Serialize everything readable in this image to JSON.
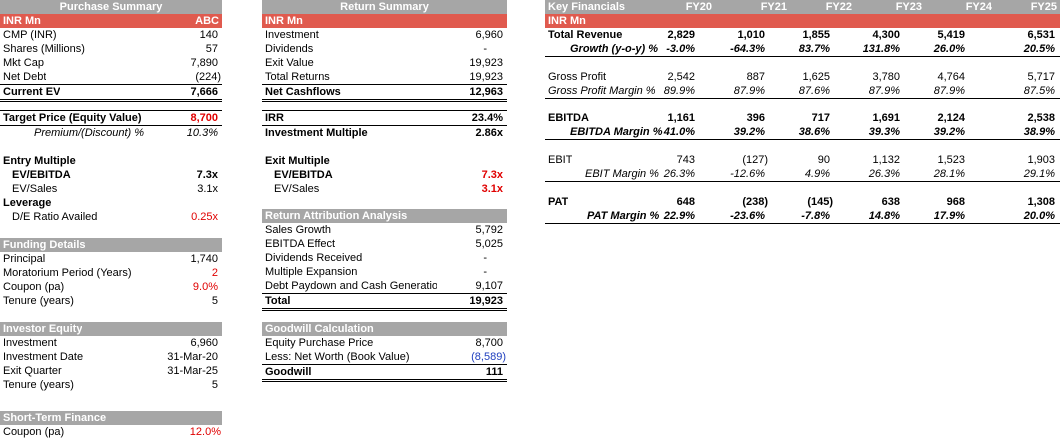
{
  "purchase": {
    "title": "Purchase Summary",
    "unit": "INR Mn",
    "company": "ABC",
    "rows": [
      {
        "label": "CMP (INR)",
        "value": "140"
      },
      {
        "label": "Shares (Millions)",
        "value": "57"
      },
      {
        "label": "Mkt Cap",
        "value": "7,890"
      },
      {
        "label": "Net Debt",
        "value": "(224)"
      },
      {
        "label": "Current EV",
        "value": "7,666"
      }
    ],
    "target_label": "Target Price (Equity Value)",
    "target_value": "8,700",
    "premium_label": "Premium/(Discount) %",
    "premium_value": "10.3%",
    "entry_label": "Entry Multiple",
    "ev_ebitda_label": "EV/EBITDA",
    "ev_ebitda_value": "7.3x",
    "ev_sales_label": "EV/Sales",
    "ev_sales_value": "3.1x",
    "leverage_label": "Leverage",
    "de_label": "D/E Ratio Availed",
    "de_value": "0.25x"
  },
  "funding": {
    "title": "Funding Details",
    "rows": [
      {
        "label": "Principal",
        "value": "1,740"
      },
      {
        "label": "Moratorium Period (Years)",
        "value": "2"
      },
      {
        "label": "Coupon (pa)",
        "value": "9.0%"
      },
      {
        "label": "Tenure (years)",
        "value": "5"
      }
    ]
  },
  "investor": {
    "title": "Investor Equity",
    "rows": [
      {
        "label": "Investment",
        "value": "6,960"
      },
      {
        "label": "Investment Date",
        "value": "31-Mar-20"
      },
      {
        "label": "Exit Quarter",
        "value": "31-Mar-25"
      },
      {
        "label": "Tenure (years)",
        "value": "5"
      }
    ]
  },
  "stf": {
    "title": "Short-Term Finance",
    "coupon_label": "Coupon (pa)",
    "coupon_value": "12.0%"
  },
  "returns": {
    "title": "Return Summary",
    "unit": "INR Mn",
    "rows": [
      {
        "label": "Investment",
        "value": "6,960"
      },
      {
        "label": "Dividends",
        "value": "-"
      },
      {
        "label": "Exit Value",
        "value": "19,923"
      },
      {
        "label": "Total Returns",
        "value": "19,923"
      },
      {
        "label": "Net Cashflows",
        "value": "12,963"
      }
    ],
    "irr_label": "IRR",
    "irr_value": "23.4%",
    "im_label": "Investment Multiple",
    "im_value": "2.86x",
    "exit_label": "Exit Multiple",
    "exit_ebitda_label": "EV/EBITDA",
    "exit_ebitda_value": "7.3x",
    "exit_sales_label": "EV/Sales",
    "exit_sales_value": "3.1x"
  },
  "attribution": {
    "title": "Return Attribution Analysis",
    "rows": [
      {
        "label": "Sales Growth",
        "value": "5,792"
      },
      {
        "label": "EBITDA Effect",
        "value": "5,025"
      },
      {
        "label": "Dividends Received",
        "value": "-"
      },
      {
        "label": "Multiple Expansion",
        "value": "-"
      },
      {
        "label": "Debt Paydown and Cash Generatio",
        "value": "9,107"
      },
      {
        "label": "Total",
        "value": "19,923"
      }
    ]
  },
  "goodwill": {
    "title": "Goodwill Calculation",
    "rows": [
      {
        "label": "Equity Purchase Price",
        "value": "8,700"
      },
      {
        "label": "Less: Net Worth (Book Value)",
        "value": "(8,589)"
      },
      {
        "label": "Goodwill",
        "value": "111"
      }
    ]
  },
  "financials": {
    "title": "Key Financials",
    "unit": "INR Mn",
    "years": [
      "FY20",
      "FY21",
      "FY22",
      "FY23",
      "FY24",
      "FY25"
    ],
    "revenue_label": "Total Revenue",
    "revenue": [
      "2,829",
      "1,010",
      "1,855",
      "4,300",
      "5,419",
      "6,531"
    ],
    "growth_label": "Growth (y-o-y) %",
    "growth": [
      "-3.0%",
      "-64.3%",
      "83.7%",
      "131.8%",
      "26.0%",
      "20.5%"
    ],
    "gp_label": "Gross Profit",
    "gp": [
      "2,542",
      "887",
      "1,625",
      "3,780",
      "4,764",
      "5,717"
    ],
    "gpm_label": "Gross Profit Margin %",
    "gpm": [
      "89.9%",
      "87.9%",
      "87.6%",
      "87.9%",
      "87.9%",
      "87.5%"
    ],
    "ebitda_label": "EBITDA",
    "ebitda": [
      "1,161",
      "396",
      "717",
      "1,691",
      "2,124",
      "2,538"
    ],
    "ebitdam_label": "EBITDA Margin %",
    "ebitdam": [
      "41.0%",
      "39.2%",
      "38.6%",
      "39.3%",
      "39.2%",
      "38.9%"
    ],
    "ebit_label": "EBIT",
    "ebit": [
      "743",
      "(127)",
      "90",
      "1,132",
      "1,523",
      "1,903"
    ],
    "ebitm_label": "EBIT Margin %",
    "ebitm": [
      "26.3%",
      "-12.6%",
      "4.9%",
      "26.3%",
      "28.1%",
      "29.1%"
    ],
    "pat_label": "PAT",
    "pat": [
      "648",
      "(238)",
      "(145)",
      "638",
      "968",
      "1,308"
    ],
    "patm_label": "PAT Margin %",
    "patm": [
      "22.9%",
      "-23.6%",
      "-7.8%",
      "14.8%",
      "17.9%",
      "20.0%"
    ]
  }
}
